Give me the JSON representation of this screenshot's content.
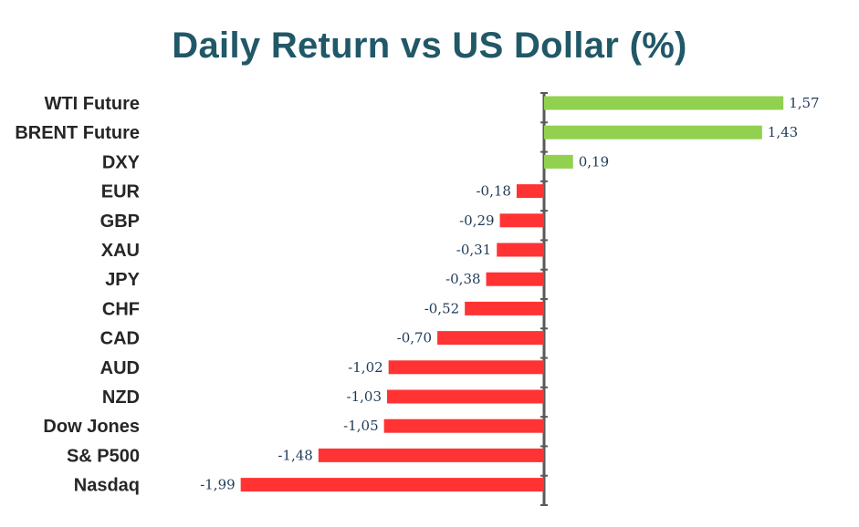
{
  "chart_data": {
    "type": "bar",
    "orientation": "horizontal",
    "title": "Daily Return vs US Dollar (%)",
    "categories": [
      "WTI Future",
      "BRENT Future",
      "DXY",
      "EUR",
      "GBP",
      "XAU",
      "JPY",
      "CHF",
      "CAD",
      "AUD",
      "NZD",
      "Dow Jones",
      "S& P500",
      "Nasdaq"
    ],
    "values": [
      1.57,
      1.43,
      0.19,
      -0.18,
      -0.29,
      -0.31,
      -0.38,
      -0.52,
      -0.7,
      -1.02,
      -1.03,
      -1.05,
      -1.48,
      -1.99
    ],
    "labels": [
      "1,57",
      "1,43",
      "0,19",
      "-0,18",
      "-0,29",
      "-0,31",
      "-0,38",
      "-0,52",
      "-0,70",
      "-1,02",
      "-1,03",
      "-1,05",
      "-1,48",
      "-1,99"
    ],
    "positive_color": "#92d050",
    "negative_color": "#ff3333",
    "axis_color": "#595959"
  }
}
